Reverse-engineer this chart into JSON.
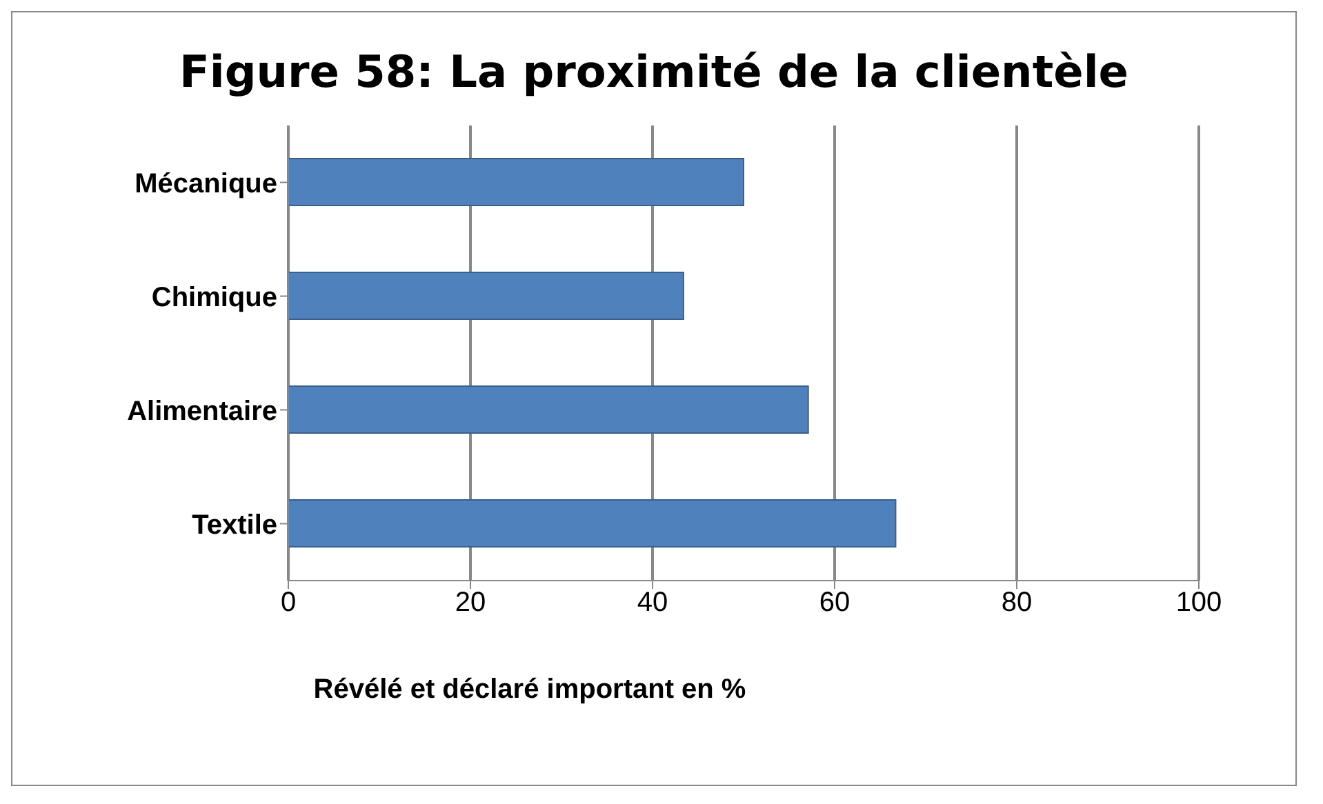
{
  "chart_data": {
    "type": "bar",
    "orientation": "horizontal",
    "title": "Figure 58: La proximité de la clientèle",
    "xlabel": "Révélé et déclaré important en %",
    "categories": [
      "Mécanique",
      "Chimique",
      "Alimentaire",
      "Textile"
    ],
    "values": [
      50,
      43.4,
      57.1,
      66.7
    ],
    "color": "#4f81bd",
    "xlim": [
      0,
      100
    ],
    "xticks": [
      0,
      20,
      40,
      60,
      80,
      100
    ],
    "grid": "x"
  }
}
